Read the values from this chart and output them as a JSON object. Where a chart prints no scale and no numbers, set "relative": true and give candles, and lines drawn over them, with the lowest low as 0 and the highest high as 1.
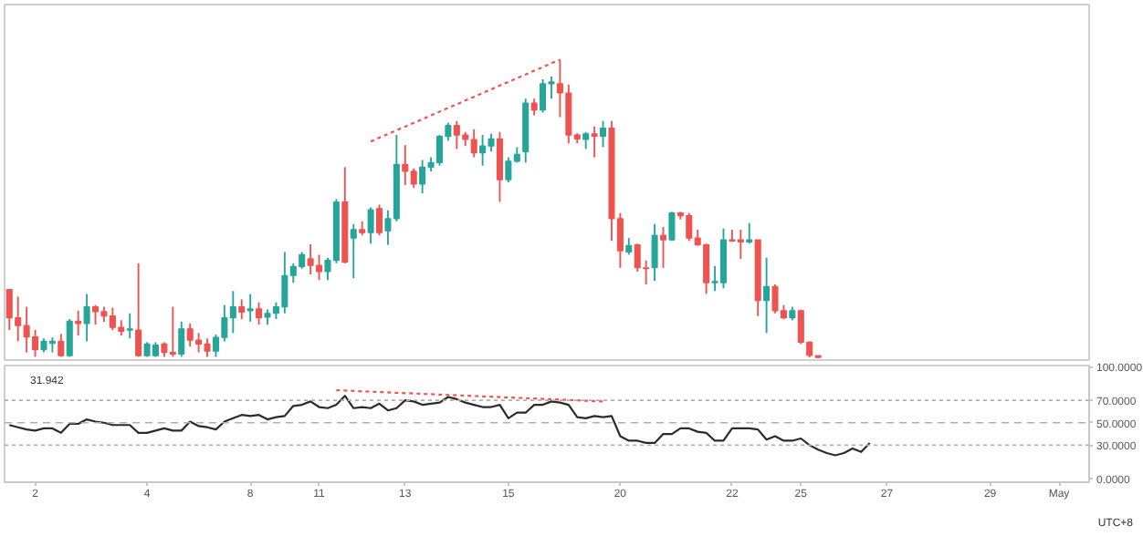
{
  "chart_data": [
    {
      "type": "candlestick",
      "relative": true,
      "categories": [
        null,
        null,
        null,
        null,
        null,
        null,
        null,
        null,
        null,
        null,
        null,
        null,
        null,
        null,
        null,
        null,
        null,
        null,
        null,
        null,
        null,
        null,
        null,
        null,
        null,
        null,
        null,
        null,
        null,
        null,
        null,
        null,
        null,
        null,
        null,
        null,
        null,
        null,
        null,
        null,
        null,
        null,
        null,
        null,
        null,
        null,
        null,
        null,
        null,
        null,
        null,
        null,
        null,
        null,
        null,
        null,
        null,
        null,
        null,
        null,
        null,
        null,
        null,
        null,
        null,
        null,
        null,
        null,
        null,
        null,
        null,
        null,
        null,
        null,
        null,
        null,
        null,
        null,
        null,
        null,
        null,
        null,
        null,
        null,
        null,
        null,
        null,
        null,
        null,
        null,
        null,
        null,
        null,
        null,
        null,
        null,
        null,
        null,
        null,
        null,
        null,
        null,
        null,
        null,
        null,
        null,
        null,
        null,
        null,
        null,
        null,
        null,
        null,
        null,
        null,
        null,
        null,
        null,
        null,
        null,
        null,
        null,
        null,
        null,
        null,
        null
      ],
      "ohlc": [
        [
          0.228,
          0.228,
          0.092,
          0.133
        ],
        [
          0.133,
          0.204,
          0.054,
          0.107
        ],
        [
          0.107,
          0.17,
          0.017,
          0.069
        ],
        [
          0.069,
          0.092,
          0.002,
          0.026
        ],
        [
          0.026,
          0.064,
          0.017,
          0.054
        ],
        [
          0.047,
          0.067,
          0.017,
          0.054
        ],
        [
          0.054,
          0.079,
          0.002,
          0.006
        ],
        [
          0.006,
          0.129,
          0.002,
          0.122
        ],
        [
          0.122,
          0.157,
          0.073,
          0.114
        ],
        [
          0.114,
          0.213,
          0.054,
          0.17
        ],
        [
          0.17,
          0.176,
          0.11,
          0.154
        ],
        [
          0.154,
          0.17,
          0.12,
          0.139
        ],
        [
          0.139,
          0.167,
          0.092,
          0.101
        ],
        [
          0.101,
          0.125,
          0.073,
          0.088
        ],
        [
          0.092,
          0.148,
          0.064,
          0.096
        ],
        [
          0.092,
          0.316,
          0.002,
          0.006
        ],
        [
          0.006,
          0.051,
          0.002,
          0.045
        ],
        [
          0.006,
          0.051,
          0.002,
          0.041
        ],
        [
          0.045,
          0.051,
          0.002,
          0.017
        ],
        [
          0.017,
          0.17,
          0.002,
          0.011
        ],
        [
          0.011,
          0.12,
          0.002,
          0.096
        ],
        [
          0.096,
          0.114,
          0.036,
          0.058
        ],
        [
          0.058,
          0.082,
          0.017,
          0.045
        ],
        [
          0.045,
          0.064,
          0.002,
          0.021
        ],
        [
          0.021,
          0.077,
          0.002,
          0.067
        ],
        [
          0.067,
          0.176,
          0.054,
          0.133
        ],
        [
          0.133,
          0.223,
          0.082,
          0.17
        ],
        [
          0.17,
          0.195,
          0.129,
          0.152
        ],
        [
          0.157,
          0.213,
          0.12,
          0.163
        ],
        [
          0.163,
          0.185,
          0.11,
          0.133
        ],
        [
          0.135,
          0.161,
          0.11,
          0.148
        ],
        [
          0.148,
          0.185,
          0.129,
          0.17
        ],
        [
          0.17,
          0.354,
          0.148,
          0.275
        ],
        [
          0.275,
          0.316,
          0.251,
          0.305
        ],
        [
          0.305,
          0.354,
          0.298,
          0.345
        ],
        [
          0.331,
          0.38,
          0.279,
          0.309
        ],
        [
          0.309,
          0.345,
          0.26,
          0.288
        ],
        [
          0.288,
          0.335,
          0.26,
          0.326
        ],
        [
          0.326,
          0.532,
          0.316,
          0.522
        ],
        [
          0.522,
          0.639,
          0.316,
          0.32
        ],
        [
          0.401,
          0.448,
          0.266,
          0.429
        ],
        [
          0.429,
          0.457,
          0.41,
          0.419
        ],
        [
          0.419,
          0.504,
          0.382,
          0.496
        ],
        [
          0.5,
          0.513,
          0.41,
          0.419
        ],
        [
          0.425,
          0.494,
          0.378,
          0.466
        ],
        [
          0.466,
          0.747,
          0.457,
          0.648
        ],
        [
          0.648,
          0.713,
          0.579,
          0.625
        ],
        [
          0.625,
          0.635,
          0.569,
          0.582
        ],
        [
          0.582,
          0.663,
          0.551,
          0.639
        ],
        [
          0.639,
          0.672,
          0.625,
          0.654
        ],
        [
          0.654,
          0.747,
          0.644,
          0.742
        ],
        [
          0.742,
          0.788,
          0.728,
          0.779
        ],
        [
          0.779,
          0.794,
          0.7,
          0.747
        ],
        [
          0.747,
          0.757,
          0.71,
          0.732
        ],
        [
          0.732,
          0.766,
          0.672,
          0.687
        ],
        [
          0.687,
          0.747,
          0.644,
          0.71
        ],
        [
          0.71,
          0.751,
          0.691,
          0.734
        ],
        [
          0.734,
          0.757,
          0.522,
          0.597
        ],
        [
          0.597,
          0.672,
          0.588,
          0.659
        ],
        [
          0.659,
          0.706,
          0.654,
          0.682
        ],
        [
          0.691,
          0.869,
          0.654,
          0.854
        ],
        [
          0.854,
          0.869,
          0.813,
          0.831
        ],
        [
          0.831,
          0.934,
          0.822,
          0.919
        ],
        [
          0.919,
          0.944,
          0.869,
          0.925
        ],
        [
          0.919,
          1.0,
          0.807,
          0.888
        ],
        [
          0.888,
          0.916,
          0.719,
          0.747
        ],
        [
          0.747,
          0.753,
          0.719,
          0.734
        ],
        [
          0.732,
          0.757,
          0.7,
          0.751
        ],
        [
          0.751,
          0.775,
          0.672,
          0.743
        ],
        [
          0.743,
          0.794,
          0.706,
          0.77
        ],
        [
          0.77,
          0.794,
          0.391,
          0.466
        ],
        [
          0.466,
          0.485,
          0.301,
          0.358
        ],
        [
          0.354,
          0.401,
          0.345,
          0.376
        ],
        [
          0.378,
          0.382,
          0.288,
          0.301
        ],
        [
          0.301,
          0.326,
          0.245,
          0.298
        ],
        [
          0.301,
          0.448,
          0.257,
          0.41
        ],
        [
          0.41,
          0.438,
          0.301,
          0.395
        ],
        [
          0.395,
          0.489,
          0.391,
          0.485
        ],
        [
          0.485,
          0.489,
          0.463,
          0.476
        ],
        [
          0.476,
          0.485,
          0.391,
          0.401
        ],
        [
          0.401,
          0.429,
          0.376,
          0.378
        ],
        [
          0.378,
          0.382,
          0.213,
          0.251
        ],
        [
          0.251,
          0.307,
          0.223,
          0.255
        ],
        [
          0.251,
          0.433,
          0.232,
          0.395
        ],
        [
          0.395,
          0.429,
          0.388,
          0.391
        ],
        [
          0.395,
          0.429,
          0.331,
          0.388
        ],
        [
          0.388,
          0.451,
          0.382,
          0.395
        ],
        [
          0.395,
          0.395,
          0.139,
          0.191
        ],
        [
          0.191,
          0.335,
          0.082,
          0.238
        ],
        [
          0.238,
          0.245,
          0.148,
          0.157
        ],
        [
          0.157,
          0.176,
          0.129,
          0.133
        ],
        [
          0.133,
          0.17,
          0.125,
          0.157
        ],
        [
          0.157,
          0.161,
          0.045,
          0.051
        ],
        [
          0.051,
          0.054,
          0,
          0.007
        ],
        [
          0.006,
          0.006,
          0,
          0
        ],
        null,
        null,
        null,
        null,
        null,
        null,
        null,
        null,
        null,
        null,
        null,
        null,
        null,
        null,
        null,
        null,
        null,
        null,
        null,
        null,
        null,
        null,
        null,
        null,
        null,
        null,
        null,
        null,
        null,
        null,
        null
      ],
      "colors": [
        "#ef5350",
        "#ef5350",
        "#ef5350",
        "#ef5350",
        "#26a69a",
        "#26a69a",
        "#ef5350",
        "#26a69a",
        "#ef5350",
        "#26a69a",
        "#ef5350",
        "#ef5350",
        "#ef5350",
        "#ef5350",
        "#26a69a",
        "#ef5350",
        "#26a69a",
        "#26a69a",
        "#ef5350",
        "#ef5350",
        "#26a69a",
        "#ef5350",
        "#ef5350",
        "#ef5350",
        "#26a69a",
        "#26a69a",
        "#26a69a",
        "#ef5350",
        "#26a69a",
        "#ef5350",
        "#26a69a",
        "#26a69a",
        "#26a69a",
        "#26a69a",
        "#26a69a",
        "#ef5350",
        "#ef5350",
        "#26a69a",
        "#26a69a",
        "#ef5350",
        "#26a69a",
        "#ef5350",
        "#26a69a",
        "#ef5350",
        "#26a69a",
        "#26a69a",
        "#ef5350",
        "#ef5350",
        "#26a69a",
        "#26a69a",
        "#26a69a",
        "#26a69a",
        "#ef5350",
        "#ef5350",
        "#ef5350",
        "#26a69a",
        "#26a69a",
        "#ef5350",
        "#26a69a",
        "#26a69a",
        "#26a69a",
        "#ef5350",
        "#26a69a",
        "#26a69a",
        "#ef5350",
        "#ef5350",
        "#ef5350",
        "#26a69a",
        "#ef5350",
        "#26a69a",
        "#ef5350",
        "#ef5350",
        "#26a69a",
        "#ef5350",
        "#ef5350",
        "#26a69a",
        "#ef5350",
        "#26a69a",
        "#ef5350",
        "#ef5350",
        "#ef5350",
        "#ef5350",
        "#26a69a",
        "#26a69a",
        "#ef5350",
        "#ef5350",
        "#26a69a",
        "#ef5350",
        "#26a69a",
        "#ef5350",
        "#ef5350",
        "#26a69a",
        "#ef5350",
        "#ef5350",
        "#ef5350",
        null,
        null,
        null,
        null,
        null,
        null,
        null,
        null,
        null,
        null,
        null,
        null,
        null,
        null,
        null,
        null,
        null,
        null,
        null,
        null,
        null,
        null,
        null,
        null,
        null,
        null,
        null,
        null,
        null,
        null,
        null
      ],
      "series": [
        {
          "type": "line",
          "values": [
            null,
            null,
            null,
            null,
            null,
            null,
            null,
            null,
            null,
            null,
            null,
            null,
            null,
            null,
            null,
            null,
            null,
            null,
            null,
            null,
            null,
            null,
            null,
            null,
            null,
            null,
            null,
            null,
            null,
            null,
            null,
            null,
            null,
            null,
            null,
            null,
            null,
            null,
            null,
            null,
            null,
            null,
            0.725,
            0.738,
            0.75,
            0.763,
            0.775,
            0.788,
            0.8,
            0.813,
            0.825,
            0.838,
            0.85,
            0.863,
            0.875,
            0.888,
            0.9,
            0.913,
            0.925,
            0.938,
            0.95,
            0.963,
            0.975,
            0.988,
            1.0,
            null,
            null,
            null,
            null,
            null,
            null,
            null,
            null,
            null,
            null,
            null,
            null,
            null,
            null,
            null,
            null,
            null,
            null,
            null,
            null,
            null,
            null,
            null,
            null,
            null,
            null,
            null,
            null,
            null,
            null,
            null,
            null,
            null,
            null,
            null,
            null,
            null,
            null,
            null,
            null,
            null,
            null,
            null,
            null,
            null,
            null,
            null,
            null,
            null,
            null,
            null,
            null,
            null,
            null,
            null,
            null,
            null,
            null,
            null,
            null,
            null
          ],
          "color": "#ef5350",
          "line_style": "dotted"
        }
      ]
    },
    {
      "type": "line",
      "ylim": [
        -3,
        101
      ],
      "categories": [
        null,
        null,
        null,
        "2",
        null,
        null,
        null,
        null,
        null,
        null,
        null,
        null,
        null,
        null,
        null,
        null,
        "4",
        null,
        null,
        null,
        null,
        null,
        null,
        null,
        null,
        null,
        null,
        null,
        "8",
        null,
        null,
        null,
        null,
        null,
        null,
        null,
        "11",
        null,
        null,
        null,
        null,
        null,
        null,
        null,
        null,
        null,
        "13",
        null,
        null,
        null,
        null,
        null,
        null,
        null,
        null,
        null,
        null,
        null,
        "15",
        null,
        null,
        null,
        null,
        null,
        null,
        null,
        null,
        null,
        null,
        null,
        null,
        "20",
        null,
        null,
        null,
        null,
        null,
        null,
        null,
        null,
        null,
        null,
        null,
        null,
        "22",
        null,
        null,
        null,
        null,
        null,
        null,
        null,
        "25",
        null,
        null,
        null,
        null,
        null,
        null,
        null,
        null,
        null,
        "27",
        null,
        null,
        null,
        null,
        null,
        null,
        null,
        null,
        null,
        null,
        null,
        "29",
        null,
        null,
        null,
        null,
        null,
        null,
        null,
        "May",
        null,
        null,
        null
      ],
      "yticks": [
        {
          "value": 0,
          "label": "0.0000"
        },
        {
          "value": 30,
          "label": "30.0000"
        },
        {
          "value": 50,
          "label": "50.0000"
        },
        {
          "value": 70,
          "label": "70.0000"
        },
        {
          "value": 100,
          "label": "100.0000"
        }
      ],
      "ref_lines": [
        {
          "axis": "y",
          "value": 70,
          "color": "#b0b0b0",
          "line_style": "dotted"
        },
        {
          "axis": "y",
          "value": 50,
          "color": "#b0b0b0",
          "line_style": "dashed"
        },
        {
          "axis": "y",
          "value": 30,
          "color": "#b0b0b0",
          "line_style": "dotted"
        }
      ],
      "annotations": [
        "31.942",
        "UTC+8"
      ],
      "series": [
        {
          "values": [
            48,
            46,
            44,
            43,
            45,
            45,
            41,
            49,
            49,
            53,
            51,
            50,
            48,
            48,
            48,
            41,
            41,
            43,
            45,
            43,
            43,
            51,
            47,
            46,
            44,
            51,
            54,
            57,
            56,
            57,
            53,
            55,
            56,
            65,
            66,
            69,
            64,
            63,
            66,
            74,
            63,
            64,
            63,
            67,
            61,
            63,
            70,
            69,
            66,
            67,
            68,
            73,
            71,
            68,
            66,
            64,
            64,
            66,
            54,
            59,
            59,
            66,
            66,
            69,
            68,
            66,
            55,
            54,
            56,
            55,
            56,
            38,
            34,
            34,
            32,
            32,
            40,
            40,
            45,
            45,
            42,
            41,
            34,
            34,
            45,
            45,
            45,
            44,
            35,
            38,
            34,
            34,
            36,
            30,
            26,
            23,
            21,
            23,
            27,
            24,
            32,
            null,
            null,
            null,
            null,
            null,
            null,
            null,
            null,
            null,
            null,
            null,
            null,
            null,
            null,
            null,
            null,
            null,
            null,
            null,
            null,
            null,
            null,
            null,
            null,
            null
          ],
          "color": "#2b2b2b"
        },
        {
          "values": [
            null,
            null,
            null,
            null,
            null,
            null,
            null,
            null,
            null,
            null,
            null,
            null,
            null,
            null,
            null,
            null,
            null,
            null,
            null,
            null,
            null,
            null,
            null,
            null,
            null,
            null,
            null,
            null,
            null,
            null,
            null,
            null,
            null,
            null,
            null,
            null,
            null,
            null,
            79,
            78.7,
            78.4,
            78,
            77.7,
            77.4,
            77.1,
            76.7,
            76.4,
            76.1,
            75.8,
            75.5,
            75.1,
            74.8,
            74.5,
            74.2,
            73.8,
            73.5,
            73.2,
            72.9,
            72.5,
            72.2,
            71.9,
            71.6,
            71.3,
            70.9,
            70.6,
            70.3,
            70,
            69.6,
            69.3,
            69,
            null,
            null,
            null,
            null,
            null,
            null,
            null,
            null,
            null,
            null,
            null,
            null,
            null,
            null,
            null,
            null,
            null,
            null,
            null,
            null,
            null,
            null,
            null,
            null,
            null,
            null,
            null,
            null,
            null,
            null,
            null,
            null,
            null,
            null,
            null,
            null,
            null,
            null,
            null,
            null,
            null,
            null,
            null,
            null,
            null,
            null,
            null,
            null,
            null,
            null,
            null,
            null,
            null,
            null,
            null,
            null
          ],
          "color": "#ef5350",
          "line_style": "dotted"
        }
      ]
    }
  ]
}
